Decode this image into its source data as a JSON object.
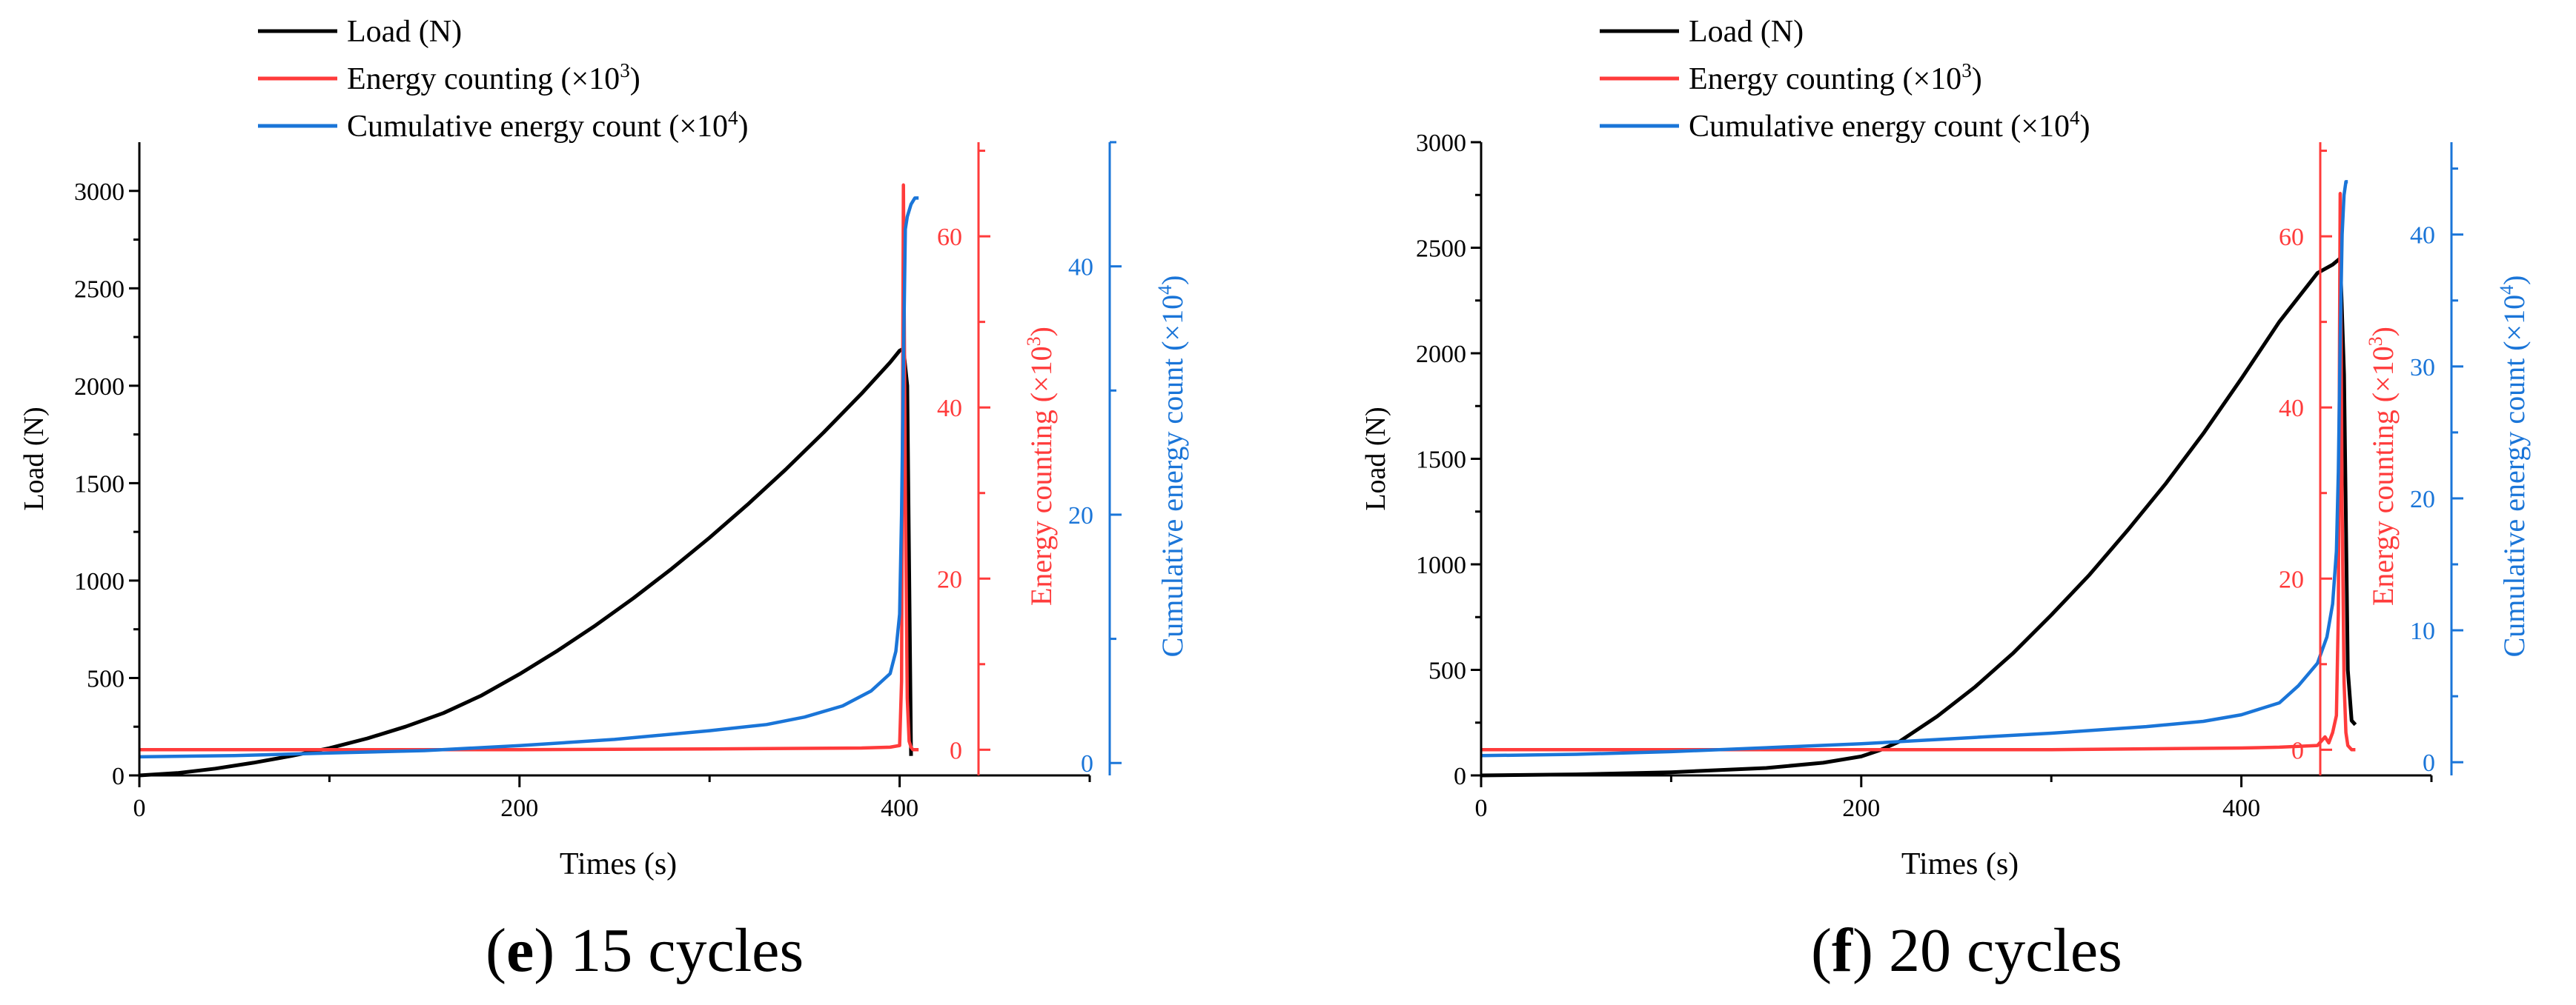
{
  "colors": {
    "load": "#000000",
    "energy": "#ff3b3b",
    "cumulative": "#1a75d8",
    "axis": "#000000"
  },
  "legend": {
    "load": {
      "text": "Load (N)"
    },
    "energy": {
      "text": "Energy counting (×10",
      "sup": "3",
      "tail": ")"
    },
    "cumulative": {
      "text": "Cumulative energy count (×10",
      "sup": "4",
      "tail": ")"
    }
  },
  "panels": [
    {
      "caption_letter": "e",
      "caption_text": " 15 cycles"
    },
    {
      "caption_letter": "f",
      "caption_text": " 20 cycles"
    }
  ],
  "chart_data": [
    {
      "type": "line",
      "title": "(e) 15 cycles",
      "xlabel": "Times (s)",
      "xlim": [
        0,
        500
      ],
      "x_ticks": [
        0,
        200,
        400
      ],
      "axes": {
        "load": {
          "label": "Load (N)",
          "ylim": [
            0,
            3250
          ],
          "ticks": [
            0,
            500,
            1000,
            1500,
            2000,
            2500,
            3000
          ]
        },
        "energy": {
          "label": "Energy counting (×10",
          "sup": "3",
          "tail": ")",
          "ylim": [
            -3,
            71
          ],
          "ticks": [
            0,
            20,
            40,
            60
          ]
        },
        "cumulative": {
          "label": "Cumulative energy count (×10",
          "sup": "4",
          "tail": ")",
          "ylim": [
            -1,
            50
          ],
          "ticks": [
            0,
            20,
            40
          ]
        }
      },
      "series": [
        {
          "name": "Load (N)",
          "axis": "load",
          "color": "#000000",
          "x": [
            0,
            20,
            40,
            60,
            80,
            100,
            120,
            140,
            160,
            180,
            200,
            220,
            240,
            260,
            280,
            300,
            320,
            340,
            360,
            380,
            395,
            400,
            402,
            404,
            406
          ],
          "y": [
            0,
            12,
            35,
            65,
            100,
            140,
            190,
            250,
            320,
            410,
            520,
            640,
            770,
            910,
            1060,
            1220,
            1390,
            1570,
            1760,
            1960,
            2120,
            2180,
            2190,
            2000,
            100
          ]
        },
        {
          "name": "Energy counting (×10³)",
          "axis": "energy",
          "color": "#ff3b3b",
          "x": [
            0,
            100,
            200,
            300,
            380,
            395,
            400,
            401,
            402,
            403,
            404,
            405,
            406,
            407,
            410
          ],
          "y": [
            0,
            0,
            0,
            0.1,
            0.2,
            0.3,
            0.5,
            8,
            66,
            30,
            6,
            1,
            0.3,
            0,
            0
          ]
        },
        {
          "name": "Cumulative energy count (×10⁴)",
          "axis": "cumulative",
          "color": "#1a75d8",
          "x": [
            0,
            50,
            100,
            150,
            200,
            250,
            300,
            330,
            350,
            370,
            385,
            395,
            398,
            400,
            401,
            402,
            403,
            404,
            406,
            408,
            410
          ],
          "y": [
            0.5,
            0.6,
            0.8,
            1,
            1.4,
            1.9,
            2.6,
            3.1,
            3.7,
            4.6,
            5.8,
            7.2,
            9,
            12,
            20,
            32,
            43,
            44,
            45,
            45.5,
            45.5
          ]
        }
      ]
    },
    {
      "type": "line",
      "title": "(f) 20 cycles",
      "xlabel": "Times (s)",
      "xlim": [
        0,
        500
      ],
      "x_ticks": [
        0,
        200,
        400
      ],
      "axes": {
        "load": {
          "label": "Load (N)",
          "ylim": [
            0,
            3000
          ],
          "ticks": [
            0,
            500,
            1000,
            1500,
            2000,
            2500,
            3000
          ]
        },
        "energy": {
          "label": "Energy counting (×10",
          "sup": "3",
          "tail": ")",
          "ylim": [
            -3,
            71
          ],
          "ticks": [
            0,
            20,
            40,
            60
          ]
        },
        "cumulative": {
          "label": "Cumulative energy count (×10",
          "sup": "4",
          "tail": ")",
          "ylim": [
            -1,
            47
          ],
          "ticks": [
            0,
            10,
            20,
            30,
            40
          ]
        }
      },
      "series": [
        {
          "name": "Load (N)",
          "axis": "load",
          "color": "#000000",
          "x": [
            0,
            50,
            100,
            150,
            180,
            200,
            210,
            220,
            240,
            260,
            280,
            300,
            320,
            340,
            360,
            380,
            400,
            420,
            440,
            448,
            452,
            454,
            456,
            458,
            460
          ],
          "y": [
            0,
            5,
            15,
            35,
            60,
            90,
            120,
            160,
            280,
            420,
            580,
            760,
            950,
            1160,
            1380,
            1620,
            1880,
            2150,
            2380,
            2420,
            2450,
            1900,
            500,
            260,
            240
          ]
        },
        {
          "name": "Energy counting (×10³)",
          "axis": "energy",
          "color": "#ff3b3b",
          "x": [
            0,
            100,
            200,
            300,
            400,
            420,
            440,
            444,
            446,
            448,
            450,
            451,
            452,
            453,
            454,
            455,
            456,
            458,
            460
          ],
          "y": [
            0,
            0,
            0,
            0,
            0.2,
            0.3,
            0.5,
            1.5,
            0.8,
            2,
            4,
            16,
            65,
            28,
            8,
            2,
            0.5,
            0,
            0
          ]
        },
        {
          "name": "Cumulative energy count (×10⁴)",
          "axis": "cumulative",
          "color": "#1a75d8",
          "x": [
            0,
            50,
            100,
            150,
            200,
            250,
            300,
            350,
            380,
            400,
            420,
            430,
            440,
            445,
            448,
            450,
            451,
            452,
            453,
            454,
            455,
            456
          ],
          "y": [
            0.5,
            0.6,
            0.8,
            1.1,
            1.4,
            1.8,
            2.2,
            2.7,
            3.1,
            3.6,
            4.5,
            5.8,
            7.5,
            9.5,
            12,
            16,
            22,
            32,
            40,
            43,
            44,
            44
          ]
        }
      ]
    }
  ]
}
